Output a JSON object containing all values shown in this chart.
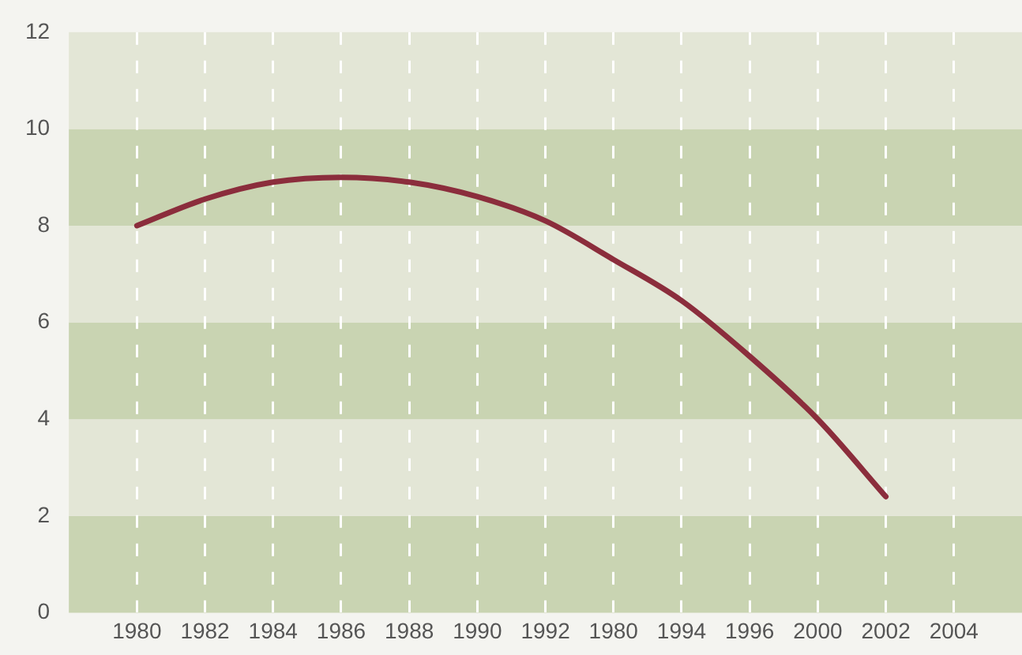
{
  "chart_data": {
    "type": "line",
    "categories": [
      "1980",
      "1982",
      "1984",
      "1986",
      "1988",
      "1990",
      "1992",
      "1980",
      "1994",
      "1996",
      "2000",
      "2002",
      "2004"
    ],
    "series": [
      {
        "color": "#8b2d3c",
        "values": [
          8.0,
          8.55,
          8.9,
          9.0,
          8.9,
          8.6,
          8.1,
          7.3,
          6.45,
          5.3,
          4.0,
          2.4,
          null
        ]
      }
    ],
    "ylim": [
      0,
      12
    ],
    "yticks": [
      0,
      2,
      4,
      6,
      8,
      10,
      12
    ],
    "bands": [
      {
        "axis": "y",
        "from": 0,
        "to": 2,
        "color": "#c9d4b2"
      },
      {
        "axis": "y",
        "from": 2,
        "to": 4,
        "color": "#e3e6d6"
      },
      {
        "axis": "y",
        "from": 4,
        "to": 6,
        "color": "#c9d4b2"
      },
      {
        "axis": "y",
        "from": 6,
        "to": 8,
        "color": "#e3e6d6"
      },
      {
        "axis": "y",
        "from": 8,
        "to": 10,
        "color": "#c9d4b2"
      },
      {
        "axis": "y",
        "from": 10,
        "to": 12,
        "color": "#e3e6d6"
      }
    ],
    "grid": "x",
    "legend": false,
    "marker": "none",
    "line_style": "solid"
  }
}
